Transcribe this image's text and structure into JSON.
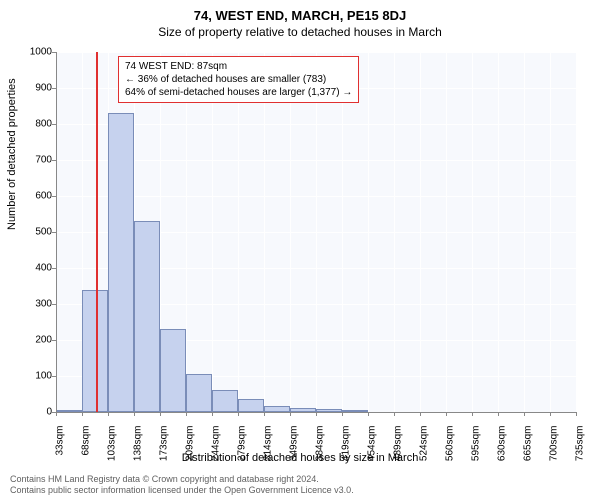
{
  "title": "74, WEST END, MARCH, PE15 8DJ",
  "subtitle": "Size of property relative to detached houses in March",
  "ylabel": "Number of detached properties",
  "xlabel": "Distribution of detached houses by size in March",
  "footer1": "Contains HM Land Registry data © Crown copyright and database right 2024.",
  "footer2": "Contains public sector information licensed under the Open Government Licence v3.0.",
  "chart": {
    "type": "histogram",
    "background_color": "#f7f9fd",
    "grid_color": "#ffffff",
    "bar_fill": "#c6d2ee",
    "bar_stroke": "#7a8db8",
    "marker_color": "#e03030",
    "ylim": [
      0,
      1000
    ],
    "ytick_step": 100,
    "xtick_labels": [
      "33sqm",
      "68sqm",
      "103sqm",
      "138sqm",
      "173sqm",
      "209sqm",
      "244sqm",
      "279sqm",
      "314sqm",
      "349sqm",
      "384sqm",
      "419sqm",
      "454sqm",
      "489sqm",
      "524sqm",
      "560sqm",
      "595sqm",
      "630sqm",
      "665sqm",
      "700sqm",
      "735sqm"
    ],
    "bar_values": [
      5,
      340,
      830,
      530,
      230,
      105,
      60,
      35,
      18,
      12,
      8,
      6,
      0,
      0,
      0,
      0,
      0,
      0,
      0,
      0
    ],
    "marker_value_sqm": 87,
    "annotation": {
      "line1": "74 WEST END: 87sqm",
      "line2": "← 36% of detached houses are smaller (783)",
      "line3": "64% of semi-detached houses are larger (1,377) →"
    }
  }
}
